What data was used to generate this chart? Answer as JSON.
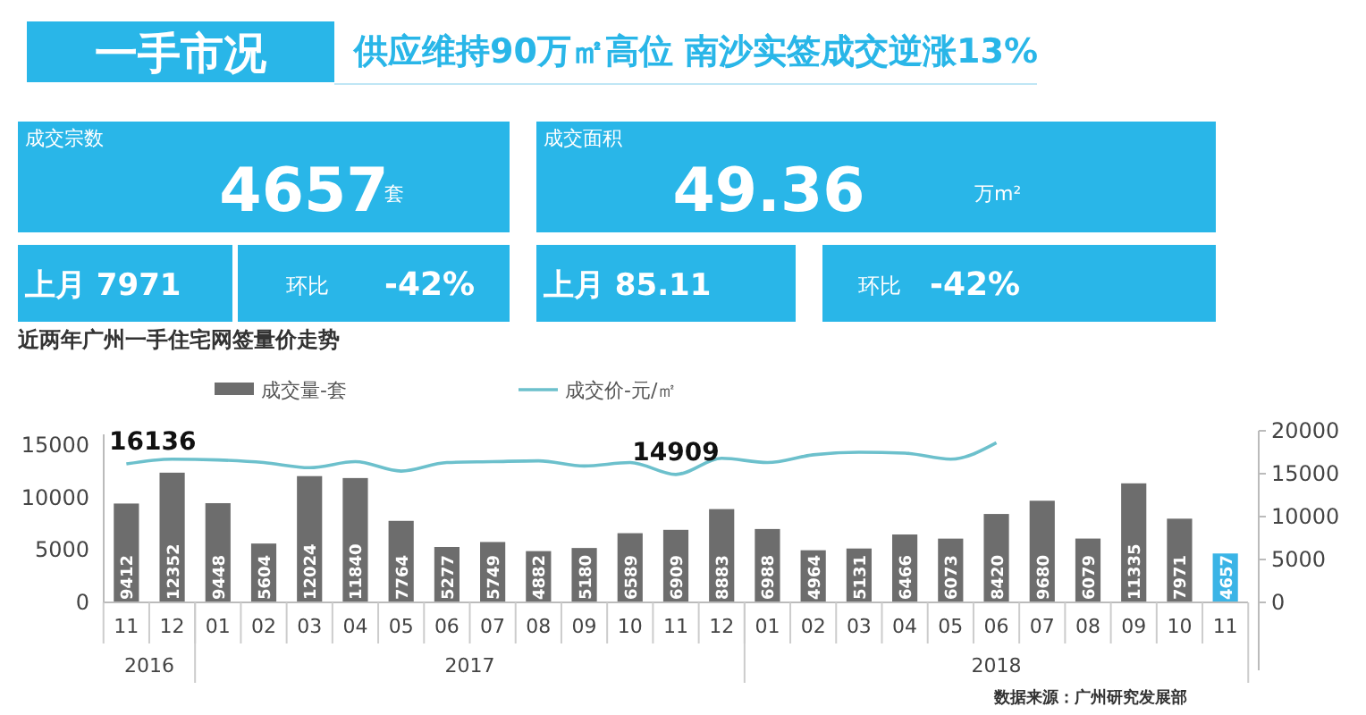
{
  "chart_data": [
    {
      "type": "other",
      "title": "一手市况",
      "subtitle": "供应维持90万㎡高位 南沙实签成交逆涨13%",
      "annotations": [
        "成交宗数",
        "4657",
        "套",
        "上月 7971",
        "环比",
        "-42%",
        "成交面积",
        "49.36",
        "万m²",
        "上月 85.11",
        "环比",
        "-42%"
      ]
    },
    {
      "type": "bar",
      "title": "近两年广州一手住宅网签量价走势",
      "categories": [
        "11",
        "12",
        "01",
        "02",
        "03",
        "04",
        "05",
        "06",
        "07",
        "08",
        "09",
        "10",
        "11",
        "12",
        "01",
        "02",
        "03",
        "04",
        "05",
        "06",
        "07",
        "08",
        "09",
        "10",
        "11"
      ],
      "series": [
        {
          "name": "成交量-套",
          "type": "bar",
          "colors": [
            "#6d6d6d",
            "#6d6d6d",
            "#6d6d6d",
            "#6d6d6d",
            "#6d6d6d",
            "#6d6d6d",
            "#6d6d6d",
            "#6d6d6d",
            "#6d6d6d",
            "#6d6d6d",
            "#6d6d6d",
            "#6d6d6d",
            "#6d6d6d",
            "#6d6d6d",
            "#6d6d6d",
            "#6d6d6d",
            "#6d6d6d",
            "#6d6d6d",
            "#6d6d6d",
            "#6d6d6d",
            "#6d6d6d",
            "#6d6d6d",
            "#6d6d6d",
            "#6d6d6d",
            "#3ab4e6"
          ],
          "color": "#6d6d6d",
          "values": [
            9412,
            12352,
            9448,
            5604,
            12024,
            11840,
            7764,
            5277,
            5749,
            4882,
            5180,
            6589,
            6909,
            8883,
            6988,
            4964,
            5131,
            6466,
            6073,
            8420,
            9680,
            6079,
            11335,
            7971,
            4657
          ],
          "value_labels": [
            "9412",
            "12352",
            "9448",
            "5604",
            "12024",
            "11840",
            "7764",
            "5277",
            "5749",
            "4882",
            "5180",
            "6589",
            "6909",
            "8883",
            "6988",
            "4964",
            "5131",
            "6466",
            "6073",
            "8420",
            "9680",
            "6079",
            "11335",
            "7971",
            "4657"
          ]
        },
        {
          "name": "成交价-元/㎡",
          "type": "line",
          "axis": "y2",
          "color": "#6cc0cc",
          "values": [
            16136,
            16700,
            16600,
            16300,
            15700,
            16400,
            15300,
            16300,
            16400,
            16500,
            15900,
            16300,
            14909,
            16800,
            16300,
            17200,
            17500,
            17400,
            16700,
            18600,
            null,
            null,
            null,
            null,
            null
          ],
          "value_labels": [
            "16136",
            null,
            null,
            null,
            null,
            null,
            null,
            null,
            null,
            null,
            null,
            null,
            "14909",
            null,
            null,
            null,
            null,
            null,
            null,
            null,
            null,
            null,
            null,
            null,
            null
          ]
        }
      ],
      "ylim": [
        0,
        16000
      ],
      "yticks": [
        0,
        5000,
        10000,
        15000
      ],
      "y2lim": [
        0,
        20000
      ],
      "y2ticks": [
        0,
        5000,
        10000,
        15000,
        20000
      ],
      "legend": "top",
      "marker": "none",
      "line_style": "solid",
      "annotations": [
        "2016",
        "2017",
        "2018",
        "数据来源：广州研究发展部"
      ]
    }
  ]
}
